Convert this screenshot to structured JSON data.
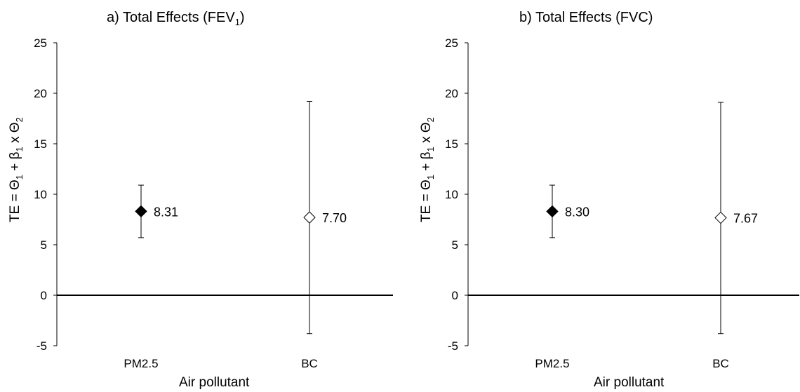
{
  "chart_data": [
    {
      "type": "scatter",
      "panel_label": "a)",
      "title": "Total Effects (FEV",
      "title_subscript": "1",
      "title_suffix": ")",
      "xlabel": "Air pollutant",
      "ylabel": {
        "parts": [
          {
            "t": "TE = Θ"
          },
          {
            "sub": "1"
          },
          {
            "t": " + β"
          },
          {
            "sub": "1"
          },
          {
            "t": " x Θ"
          },
          {
            "sub": "2"
          }
        ]
      },
      "categories": [
        "PM2.5",
        "BC"
      ],
      "ylim": [
        -5,
        25
      ],
      "yticks": [
        -5,
        0,
        5,
        10,
        15,
        20,
        25
      ],
      "points": [
        {
          "category": "PM2.5",
          "value": 8.31,
          "label": "8.31",
          "lower": 5.7,
          "upper": 10.9,
          "marker": "filled-diamond"
        },
        {
          "category": "BC",
          "value": 7.7,
          "label": "7.70",
          "lower": -3.8,
          "upper": 19.2,
          "marker": "open-diamond"
        }
      ],
      "grid": false,
      "reference_line": 0
    },
    {
      "type": "scatter",
      "panel_label": "b)",
      "title": "Total Effects (FVC)",
      "title_subscript": "",
      "title_suffix": "",
      "xlabel": "Air pollutant",
      "ylabel": {
        "parts": [
          {
            "t": "TE = Θ"
          },
          {
            "sub": "1"
          },
          {
            "t": " + β"
          },
          {
            "sub": "1"
          },
          {
            "t": " x Θ"
          },
          {
            "sub": "2"
          }
        ]
      },
      "categories": [
        "PM2.5",
        "BC"
      ],
      "ylim": [
        -5,
        25
      ],
      "yticks": [
        -5,
        0,
        5,
        10,
        15,
        20,
        25
      ],
      "points": [
        {
          "category": "PM2.5",
          "value": 8.3,
          "label": "8.30",
          "lower": 5.7,
          "upper": 10.9,
          "marker": "filled-diamond"
        },
        {
          "category": "BC",
          "value": 7.67,
          "label": "7.67",
          "lower": -3.8,
          "upper": 19.1,
          "marker": "open-diamond"
        }
      ],
      "grid": false,
      "reference_line": 0
    }
  ]
}
